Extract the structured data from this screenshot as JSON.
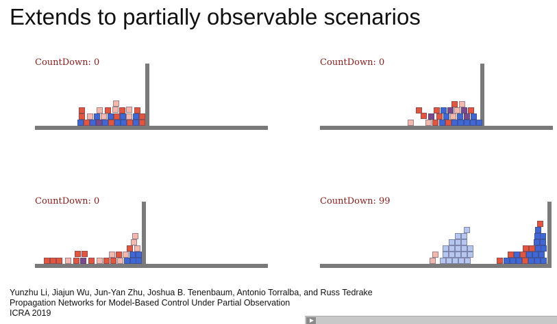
{
  "slide": {
    "title": "Extends to partially observable scenarios"
  },
  "panels": [
    {
      "countdown": "CountDown: 0"
    },
    {
      "countdown": "CountDown: 0"
    },
    {
      "countdown": "CountDown: 0"
    },
    {
      "countdown": "CountDown: 99"
    }
  ],
  "citation": {
    "authors": "Yunzhu Li, Jiajun Wu, Jun-Yan Zhu, Joshua B. Tenenbaum, Antonio Torralba, and Russ Tedrake",
    "paper_title": "Propagation Networks for Model-Based Control Under Partial Observation",
    "venue": "ICRA 2019"
  },
  "colors": {
    "countdown_text": "#8b1a1a",
    "box_blue": "#3f67d6",
    "box_red": "#e4553d",
    "ground": "#7a7a7a"
  },
  "video_controls": {
    "play_icon": "play-icon"
  }
}
